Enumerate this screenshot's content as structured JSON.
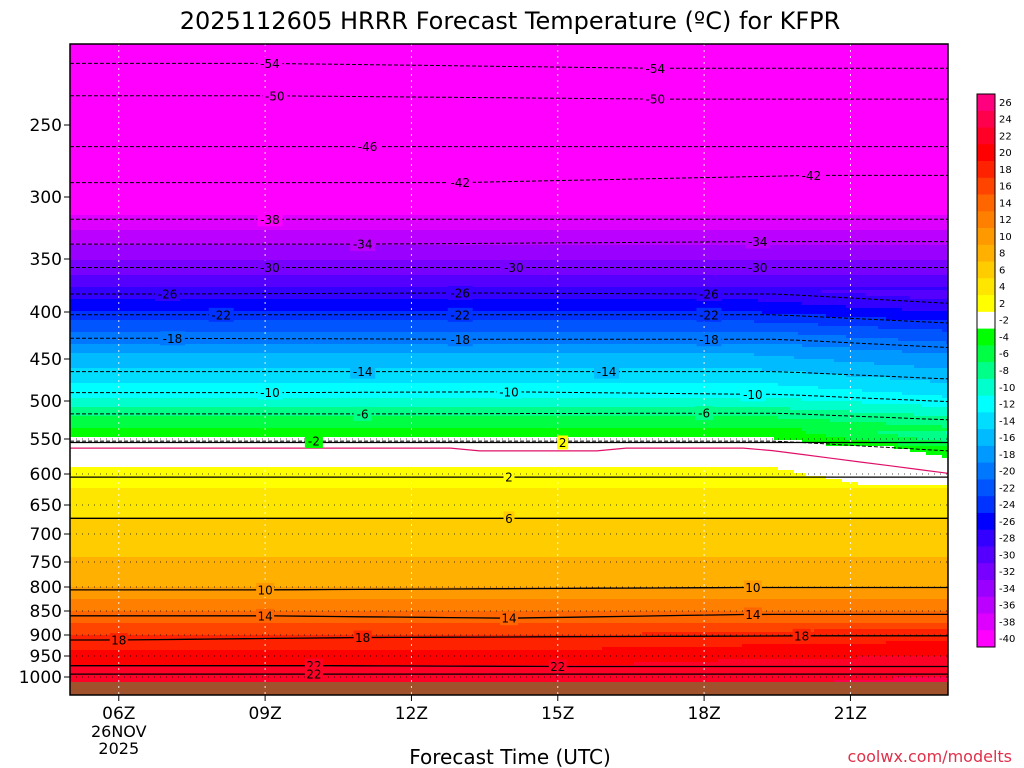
{
  "chart_data": {
    "type": "heatmap",
    "title": "2025112605 HRRR Forecast Temperature (ºC) for KFPR",
    "xlabel": "Forecast Time (UTC)",
    "ylabel": "",
    "credit": "coolwx.com/modelts",
    "x_ticks": [
      {
        "hour": 6,
        "label": "06Z",
        "date_lines": [
          "26NOV",
          "2025"
        ]
      },
      {
        "hour": 9,
        "label": "09Z"
      },
      {
        "hour": 12,
        "label": "12Z"
      },
      {
        "hour": 15,
        "label": "15Z"
      },
      {
        "hour": 18,
        "label": "18Z"
      },
      {
        "hour": 21,
        "label": "21Z"
      }
    ],
    "xlim": [
      5,
      23
    ],
    "y_ticks": [
      250,
      300,
      350,
      400,
      450,
      500,
      550,
      600,
      650,
      700,
      750,
      800,
      850,
      900,
      950,
      1000
    ],
    "ylim": [
      1030,
      200
    ],
    "colorbar": {
      "labels": [
        "26",
        "24",
        "22",
        "20",
        "18",
        "16",
        "14",
        "12",
        "10",
        "8",
        "6",
        "4",
        "2",
        "-2",
        "-4",
        "-6",
        "-8",
        "-10",
        "-12",
        "-14",
        "-16",
        "-18",
        "-20",
        "-22",
        "-24",
        "-26",
        "-28",
        "-30",
        "-32",
        "-34",
        "-36",
        "-38",
        "-40"
      ],
      "colors": [
        "#ff007f",
        "#ff004c",
        "#ff0026",
        "#ff0000",
        "#ff2200",
        "#ff4400",
        "#ff6600",
        "#ff8000",
        "#ff9900",
        "#ffb000",
        "#ffcc00",
        "#ffe600",
        "#ffff00",
        "#ffffff",
        "#00ff00",
        "#00ff44",
        "#00ff88",
        "#00ffcc",
        "#00ffff",
        "#00ddff",
        "#00bbff",
        "#0099ff",
        "#0077ff",
        "#0055ff",
        "#0033ff",
        "#0000ff",
        "#3300ff",
        "#5500ff",
        "#7700ff",
        "#9900ff",
        "#bb00ff",
        "#dd00ff",
        "#ff00ff"
      ]
    },
    "contour_labels": [
      {
        "value": -54,
        "hour": 9.1,
        "pressure": 212
      },
      {
        "value": -54,
        "hour": 17.0,
        "pressure": 215
      },
      {
        "value": -50,
        "hour": 9.2,
        "pressure": 232
      },
      {
        "value": -50,
        "hour": 17.0,
        "pressure": 234
      },
      {
        "value": -46,
        "hour": 11.1,
        "pressure": 265
      },
      {
        "value": -42,
        "hour": 13.0,
        "pressure": 290
      },
      {
        "value": -42,
        "hour": 20.2,
        "pressure": 285
      },
      {
        "value": -38,
        "hour": 9.1,
        "pressure": 318
      },
      {
        "value": -34,
        "hour": 11.0,
        "pressure": 338
      },
      {
        "value": -34,
        "hour": 19.1,
        "pressure": 336
      },
      {
        "value": -30,
        "hour": 9.1,
        "pressure": 358
      },
      {
        "value": -30,
        "hour": 14.1,
        "pressure": 358
      },
      {
        "value": -30,
        "hour": 19.1,
        "pressure": 358
      },
      {
        "value": -26,
        "hour": 7.0,
        "pressure": 383
      },
      {
        "value": -26,
        "hour": 13.0,
        "pressure": 382
      },
      {
        "value": -26,
        "hour": 18.1,
        "pressure": 383
      },
      {
        "value": -22,
        "hour": 8.1,
        "pressure": 403
      },
      {
        "value": -22,
        "hour": 13.0,
        "pressure": 403
      },
      {
        "value": -22,
        "hour": 18.1,
        "pressure": 403
      },
      {
        "value": -18,
        "hour": 7.1,
        "pressure": 428
      },
      {
        "value": -18,
        "hour": 13.0,
        "pressure": 429
      },
      {
        "value": -18,
        "hour": 18.1,
        "pressure": 429
      },
      {
        "value": -14,
        "hour": 11.0,
        "pressure": 465
      },
      {
        "value": -14,
        "hour": 16.0,
        "pressure": 465
      },
      {
        "value": -10,
        "hour": 9.1,
        "pressure": 490
      },
      {
        "value": -10,
        "hour": 14.0,
        "pressure": 489
      },
      {
        "value": -10,
        "hour": 19.0,
        "pressure": 492
      },
      {
        "value": -6,
        "hour": 11.0,
        "pressure": 517
      },
      {
        "value": -6,
        "hour": 18.0,
        "pressure": 516
      },
      {
        "value": -2,
        "hour": 10.0,
        "pressure": 553
      },
      {
        "value": 2,
        "hour": 15.1,
        "pressure": 555
      },
      {
        "value": 2,
        "hour": 14.0,
        "pressure": 605
      },
      {
        "value": 6,
        "hour": 14.0,
        "pressure": 673
      },
      {
        "value": 10,
        "hour": 9.0,
        "pressure": 806
      },
      {
        "value": 10,
        "hour": 19.0,
        "pressure": 801
      },
      {
        "value": 14,
        "hour": 9.0,
        "pressure": 860
      },
      {
        "value": 14,
        "hour": 14.0,
        "pressure": 865
      },
      {
        "value": 14,
        "hour": 19.0,
        "pressure": 857
      },
      {
        "value": 18,
        "hour": 6.0,
        "pressure": 912
      },
      {
        "value": 18,
        "hour": 11.0,
        "pressure": 906
      },
      {
        "value": 18,
        "hour": 20.0,
        "pressure": 902
      },
      {
        "value": 22,
        "hour": 10.0,
        "pressure": 973
      },
      {
        "value": 22,
        "hour": 15.0,
        "pressure": 975
      },
      {
        "value": 22,
        "hour": 10.0,
        "pressure": 993
      }
    ]
  }
}
